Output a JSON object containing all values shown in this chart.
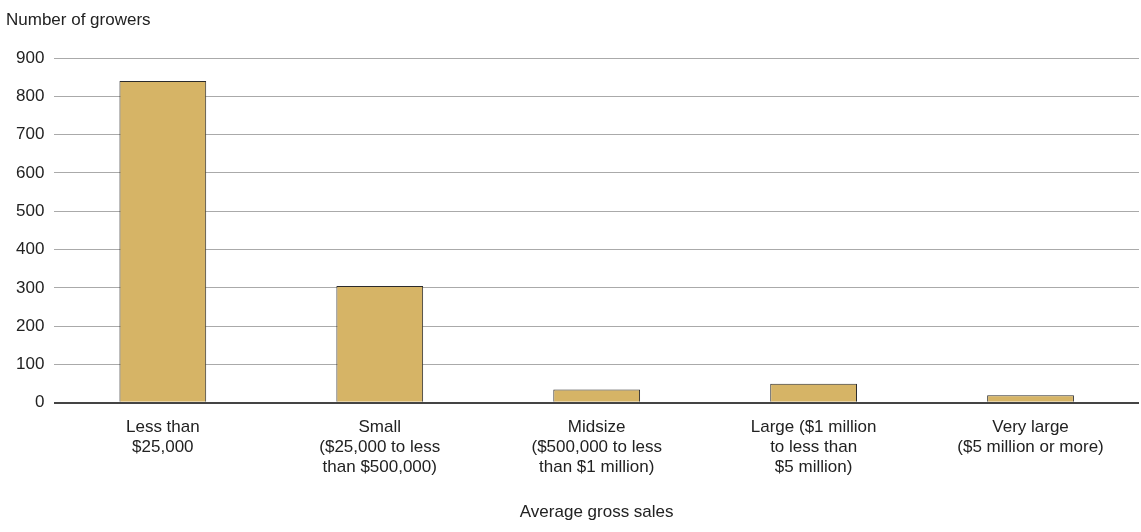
{
  "chart_data": {
    "type": "bar",
    "ylabel": "Number of growers",
    "xlabel": "Average gross sales",
    "categories": [
      "Less than\n$25,000",
      "Small\n($25,000 to less\nthan $500,000)",
      "Midsize\n($500,000 to less\nthan $1 million)",
      "Large ($1 million\nto less than\n$5 million)",
      "Very large\n($5 million or more)"
    ],
    "values": [
      840,
      305,
      35,
      50,
      20
    ],
    "color": "#d6b466",
    "ylim": [
      0,
      900
    ],
    "yticks": [
      0,
      100,
      200,
      300,
      400,
      500,
      600,
      700,
      800,
      900
    ],
    "grid": "y"
  }
}
